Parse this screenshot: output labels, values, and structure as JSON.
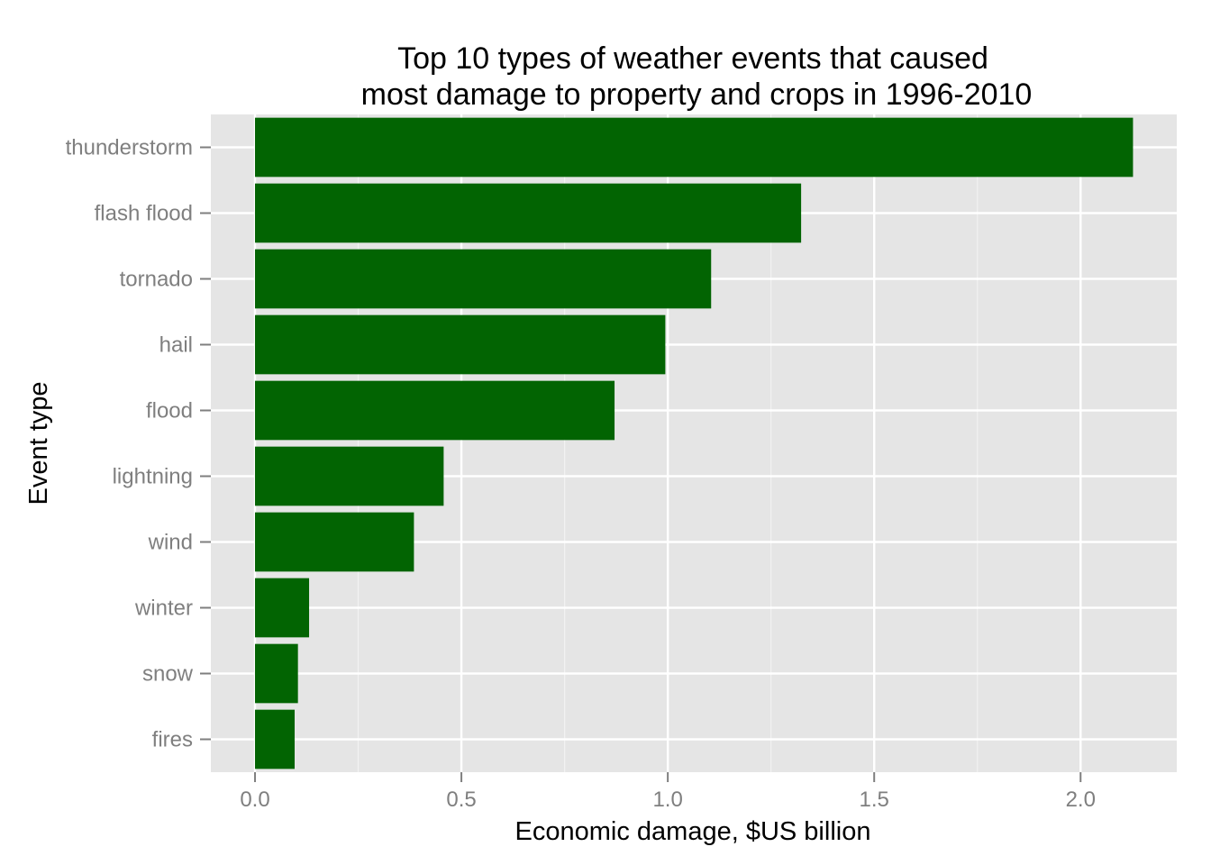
{
  "colors": {
    "bar": "#026402",
    "panel": "#e5e5e5",
    "grid_major": "#ffffff",
    "grid_minor": "#f2f2f2",
    "tick_text": "#7f7f7f",
    "tick_mark": "#7f7f7f"
  },
  "chart_data": {
    "type": "bar",
    "orientation": "horizontal",
    "title_line1": "Top 10 types of weather events that caused",
    "title_line2": "most damage to property and crops in 1996-2010",
    "xlabel": "Economic damage, $US billion",
    "ylabel": "Event type",
    "categories": [
      "thunderstorm",
      "flash flood",
      "tornado",
      "hail",
      "flood",
      "lightning",
      "wind",
      "winter",
      "snow",
      "fires"
    ],
    "values": [
      2.127,
      1.323,
      1.105,
      0.994,
      0.871,
      0.457,
      0.385,
      0.131,
      0.104,
      0.096
    ],
    "xlim": [
      -0.107,
      2.233
    ],
    "x_ticks": [
      0.0,
      0.5,
      1.0,
      1.5,
      2.0
    ],
    "x_tick_labels": [
      "0.0",
      "0.5",
      "1.0",
      "1.5",
      "2.0"
    ],
    "grid": true,
    "legend": "none"
  }
}
